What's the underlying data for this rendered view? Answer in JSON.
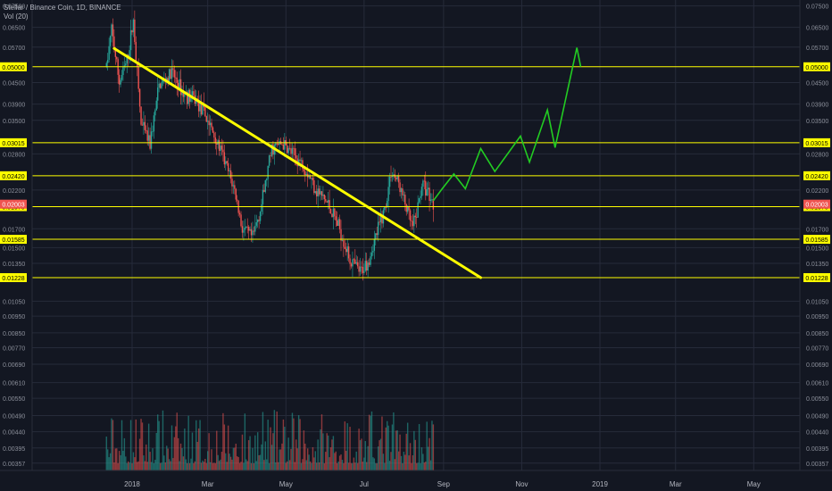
{
  "header": {
    "symbol_line": "Stellar / Binance Coin, 1D, BINANCE",
    "indicator_line": "Vol (20)"
  },
  "colors": {
    "background": "#131722",
    "grid": "#262b3a",
    "axis_text": "#8b8f9a",
    "candle_up": "#26a69a",
    "candle_down": "#ef5350",
    "level_line": "#ffff00",
    "level_label_bg": "#ffff00",
    "trendline": "#ffff00",
    "projection": "#22cc22",
    "last_price_bg": "#ef5350"
  },
  "chart_data": {
    "type": "candlestick",
    "title": "Stellar / Binance Coin, 1D, BINANCE",
    "y_scale": "log",
    "ylim": [
      0.0034,
      0.078
    ],
    "y_ticks": [
      "0.07500",
      "0.06500",
      "0.05700",
      "0.04500",
      "0.03900",
      "0.03500",
      "0.02800",
      "0.02200",
      "0.01700",
      "0.01500",
      "0.01350",
      "0.01050",
      "0.00950",
      "0.00850",
      "0.00770",
      "0.00690",
      "0.00610",
      "0.00550",
      "0.00490",
      "0.00440",
      "0.00395",
      "0.00357"
    ],
    "x_ticks": [
      "2018",
      "Mar",
      "May",
      "Jul",
      "Sep",
      "Nov",
      "2019",
      "Mar",
      "May"
    ],
    "x_range": [
      "2017-10-15",
      "2019-06-06"
    ],
    "levels": [
      "0.05000",
      "0.03015",
      "0.02420",
      "0.01970",
      "0.01585",
      "0.01228"
    ],
    "last_price": "0.02003",
    "trendline": [
      {
        "date": "2017-12-18",
        "price": 0.0565
      },
      {
        "date": "2018-09-30",
        "price": 0.01228
      }
    ],
    "projection": [
      {
        "date": "2018-08-24",
        "price": 0.0205
      },
      {
        "date": "2018-08-31",
        "price": 0.0222
      },
      {
        "date": "2018-09-09",
        "price": 0.0245
      },
      {
        "date": "2018-09-18",
        "price": 0.0222
      },
      {
        "date": "2018-09-30",
        "price": 0.029
      },
      {
        "date": "2018-10-11",
        "price": 0.0249
      },
      {
        "date": "2018-10-31",
        "price": 0.0315
      },
      {
        "date": "2018-11-07",
        "price": 0.0265
      },
      {
        "date": "2018-11-21",
        "price": 0.0375
      },
      {
        "date": "2018-11-27",
        "price": 0.0292
      },
      {
        "date": "2018-12-14",
        "price": 0.0568
      },
      {
        "date": "2018-12-17",
        "price": 0.05
      }
    ],
    "price_path": [
      {
        "date": "2017-12-12",
        "price": 0.05
      },
      {
        "date": "2017-12-16",
        "price": 0.064
      },
      {
        "date": "2017-12-22",
        "price": 0.045
      },
      {
        "date": "2017-12-28",
        "price": 0.052
      },
      {
        "date": "2018-01-02",
        "price": 0.068
      },
      {
        "date": "2018-01-08",
        "price": 0.034
      },
      {
        "date": "2018-01-15",
        "price": 0.03
      },
      {
        "date": "2018-01-22",
        "price": 0.044
      },
      {
        "date": "2018-02-01",
        "price": 0.048
      },
      {
        "date": "2018-02-10",
        "price": 0.042
      },
      {
        "date": "2018-02-20",
        "price": 0.04
      },
      {
        "date": "2018-03-01",
        "price": 0.035
      },
      {
        "date": "2018-03-12",
        "price": 0.028
      },
      {
        "date": "2018-03-22",
        "price": 0.022
      },
      {
        "date": "2018-03-28",
        "price": 0.017
      },
      {
        "date": "2018-04-05",
        "price": 0.016
      },
      {
        "date": "2018-04-12",
        "price": 0.02
      },
      {
        "date": "2018-04-20",
        "price": 0.029
      },
      {
        "date": "2018-04-28",
        "price": 0.03
      },
      {
        "date": "2018-05-06",
        "price": 0.028
      },
      {
        "date": "2018-05-15",
        "price": 0.026
      },
      {
        "date": "2018-05-25",
        "price": 0.022
      },
      {
        "date": "2018-06-03",
        "price": 0.02
      },
      {
        "date": "2018-06-12",
        "price": 0.017
      },
      {
        "date": "2018-06-20",
        "price": 0.0138
      },
      {
        "date": "2018-06-28",
        "price": 0.0127
      },
      {
        "date": "2018-07-05",
        "price": 0.014
      },
      {
        "date": "2018-07-12",
        "price": 0.017
      },
      {
        "date": "2018-07-18",
        "price": 0.02
      },
      {
        "date": "2018-07-22",
        "price": 0.025
      },
      {
        "date": "2018-07-28",
        "price": 0.023
      },
      {
        "date": "2018-08-03",
        "price": 0.0195
      },
      {
        "date": "2018-08-08",
        "price": 0.017
      },
      {
        "date": "2018-08-12",
        "price": 0.0196
      },
      {
        "date": "2018-08-15",
        "price": 0.023
      },
      {
        "date": "2018-08-20",
        "price": 0.0218
      },
      {
        "date": "2018-08-24",
        "price": 0.02
      }
    ]
  }
}
